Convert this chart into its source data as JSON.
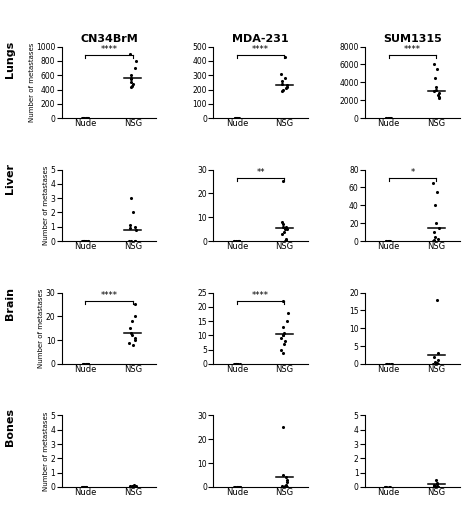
{
  "col_titles": [
    "CN34BrM",
    "MDA-231",
    "SUM1315"
  ],
  "row_titles": [
    "Lungs",
    "Liver",
    "Brain",
    "Bones"
  ],
  "ylabel": "Number of metastases",
  "data": {
    "Lungs": {
      "CN34BrM": {
        "Nude": [
          0,
          0,
          0,
          0,
          0,
          0,
          0,
          0,
          0,
          0
        ],
        "NSG": [
          900,
          800,
          700,
          600,
          560,
          540,
          510,
          480,
          450,
          430
        ],
        "mean_NSG": 555,
        "ylim": [
          0,
          1000
        ],
        "yticks": [
          0,
          200,
          400,
          600,
          800,
          1000
        ],
        "sig": "****"
      },
      "MDA-231": {
        "Nude": [
          0,
          0,
          0,
          0,
          0,
          0,
          0,
          0
        ],
        "NSG": [
          430,
          310,
          280,
          260,
          240,
          230,
          220,
          210,
          200,
          190
        ],
        "mean_NSG": 230,
        "ylim": [
          0,
          500
        ],
        "yticks": [
          0,
          100,
          200,
          300,
          400,
          500
        ],
        "sig": "****"
      },
      "SUM1315": {
        "Nude": [
          0,
          0,
          0,
          0,
          0,
          0
        ],
        "NSG": [
          6000,
          5500,
          4500,
          3500,
          3200,
          3000,
          2800,
          2600,
          2400,
          2200
        ],
        "mean_NSG": 3000,
        "ylim": [
          0,
          8000
        ],
        "yticks": [
          0,
          2000,
          4000,
          6000,
          8000
        ],
        "sig": "****"
      }
    },
    "Liver": {
      "CN34BrM": {
        "Nude": [
          0,
          0,
          0,
          0,
          0,
          0,
          0,
          0,
          0,
          0
        ],
        "NSG": [
          3.0,
          2.0,
          1.1,
          1.0,
          0.9,
          0.8,
          0.0,
          0.0,
          0.0,
          0.0
        ],
        "mean_NSG": 0.8,
        "ylim": [
          0,
          5
        ],
        "yticks": [
          0,
          1,
          2,
          3,
          4,
          5
        ],
        "sig": null
      },
      "MDA-231": {
        "Nude": [
          0,
          0,
          0,
          0,
          0,
          0,
          0,
          0
        ],
        "NSG": [
          25,
          8,
          7,
          6,
          6,
          5,
          5,
          4,
          3,
          1,
          0.5,
          0.2
        ],
        "mean_NSG": 5.5,
        "ylim": [
          0,
          30
        ],
        "yticks": [
          0,
          10,
          20,
          30
        ],
        "sig": "**"
      },
      "SUM1315": {
        "Nude": [
          0,
          0,
          0,
          0,
          0,
          0
        ],
        "NSG": [
          65,
          55,
          40,
          20,
          15,
          10,
          5,
          2,
          1,
          0.5
        ],
        "mean_NSG": 15,
        "ylim": [
          0,
          80
        ],
        "yticks": [
          0,
          20,
          40,
          60,
          80
        ],
        "sig": "*"
      }
    },
    "Brain": {
      "CN34BrM": {
        "Nude": [
          0,
          0,
          0,
          0,
          0,
          0,
          0,
          0,
          0,
          0
        ],
        "NSG": [
          25,
          20,
          18,
          15,
          13,
          12,
          11,
          10,
          9,
          8
        ],
        "mean_NSG": 13,
        "ylim": [
          0,
          30
        ],
        "yticks": [
          0,
          10,
          20,
          30
        ],
        "sig": "****"
      },
      "MDA-231": {
        "Nude": [
          0,
          0,
          0,
          0,
          0,
          0,
          0,
          0
        ],
        "NSG": [
          22,
          18,
          15,
          13,
          11,
          10,
          10,
          9,
          8,
          7,
          5,
          4
        ],
        "mean_NSG": 10.5,
        "ylim": [
          0,
          25
        ],
        "yticks": [
          0,
          5,
          10,
          15,
          20,
          25
        ],
        "sig": "****"
      },
      "SUM1315": {
        "Nude": [
          0,
          0,
          0,
          0,
          0,
          0
        ],
        "NSG": [
          18,
          3,
          2,
          1,
          0.5,
          0.2,
          0.1,
          0.1,
          0.0,
          0.0
        ],
        "mean_NSG": 2.5,
        "ylim": [
          0,
          20
        ],
        "yticks": [
          0,
          5,
          10,
          15,
          20
        ],
        "sig": null
      }
    },
    "Bones": {
      "CN34BrM": {
        "Nude": [
          0,
          0,
          0,
          0,
          0,
          0,
          0,
          0,
          0,
          0
        ],
        "NSG": [
          0.1,
          0.05,
          0.05,
          0.05,
          0.0,
          0.0,
          0.0,
          0.0,
          0.0,
          0.0
        ],
        "mean_NSG": null,
        "ylim": [
          0,
          5
        ],
        "yticks": [
          0,
          1,
          2,
          3,
          4,
          5
        ],
        "sig": null
      },
      "MDA-231": {
        "Nude": [
          0,
          0,
          0,
          0,
          0,
          0,
          0,
          0
        ],
        "NSG": [
          25,
          5,
          4,
          3,
          2,
          1,
          0.5,
          0.2,
          0.1,
          0.0
        ],
        "mean_NSG": 4,
        "ylim": [
          0,
          30
        ],
        "yticks": [
          0,
          10,
          20,
          30
        ],
        "sig": null
      },
      "SUM1315": {
        "Nude": [
          0,
          0,
          0,
          0,
          0,
          0
        ],
        "NSG": [
          0.5,
          0.3,
          0.2,
          0.1,
          0.05,
          0.05,
          0.0,
          0.0,
          0.0,
          0.0
        ],
        "mean_NSG": 0.2,
        "ylim": [
          0,
          5
        ],
        "yticks": [
          0,
          1,
          2,
          3,
          4,
          5
        ],
        "sig": null
      }
    }
  }
}
